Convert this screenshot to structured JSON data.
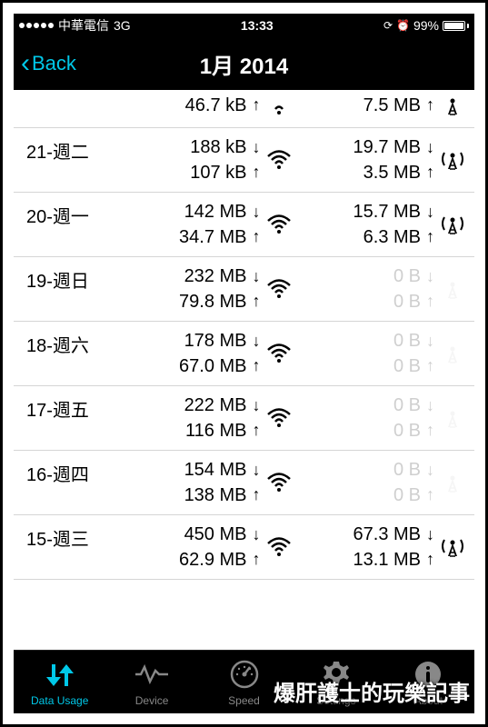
{
  "statusBar": {
    "carrier": "中華電信",
    "network": "3G",
    "time": "13:33",
    "battery": "99%"
  },
  "nav": {
    "back": "Back",
    "title": "1月 2014"
  },
  "rows": [
    {
      "date": "",
      "partial": true,
      "wifi_down": "",
      "wifi_up": "46.7 kB",
      "cell_down": "",
      "cell_up": "7.5 MB",
      "wifi_dim": false,
      "cell_dim": false,
      "cell_active": false
    },
    {
      "date": "21-週二",
      "wifi_down": "188 kB",
      "wifi_up": "107 kB",
      "cell_down": "19.7 MB",
      "cell_up": "3.5 MB",
      "wifi_dim": false,
      "cell_dim": false,
      "cell_active": true
    },
    {
      "date": "20-週一",
      "wifi_down": "142 MB",
      "wifi_up": "34.7 MB",
      "cell_down": "15.7 MB",
      "cell_up": "6.3 MB",
      "wifi_dim": false,
      "cell_dim": false,
      "cell_active": true
    },
    {
      "date": "19-週日",
      "wifi_down": "232 MB",
      "wifi_up": "79.8 MB",
      "cell_down": "0 B",
      "cell_up": "0 B",
      "wifi_dim": false,
      "cell_dim": true,
      "cell_active": false
    },
    {
      "date": "18-週六",
      "wifi_down": "178 MB",
      "wifi_up": "67.0 MB",
      "cell_down": "0 B",
      "cell_up": "0 B",
      "wifi_dim": false,
      "cell_dim": true,
      "cell_active": false
    },
    {
      "date": "17-週五",
      "wifi_down": "222 MB",
      "wifi_up": "116 MB",
      "cell_down": "0 B",
      "cell_up": "0 B",
      "wifi_dim": false,
      "cell_dim": true,
      "cell_active": false
    },
    {
      "date": "16-週四",
      "wifi_down": "154 MB",
      "wifi_up": "138 MB",
      "cell_down": "0 B",
      "cell_up": "0 B",
      "wifi_dim": false,
      "cell_dim": true,
      "cell_active": false
    },
    {
      "date": "15-週三",
      "wifi_down": "450 MB",
      "wifi_up": "62.9 MB",
      "cell_down": "67.3 MB",
      "cell_up": "13.1 MB",
      "wifi_dim": false,
      "cell_dim": false,
      "cell_active": true
    }
  ],
  "tabs": [
    {
      "label": "Data Usage",
      "active": true,
      "icon": "data"
    },
    {
      "label": "Device",
      "active": false,
      "icon": "device"
    },
    {
      "label": "Speed",
      "active": false,
      "icon": "speed"
    },
    {
      "label": "Settings",
      "active": false,
      "icon": "settings"
    },
    {
      "label": "About",
      "active": false,
      "icon": "about"
    }
  ],
  "watermark": "爆肝護士的玩樂記事",
  "colors": {
    "accent": "#00c8e8",
    "bg_dark": "#000000",
    "bg_light": "#ffffff",
    "dim_text": "#cfcfcf",
    "tab_inactive": "#888888"
  }
}
